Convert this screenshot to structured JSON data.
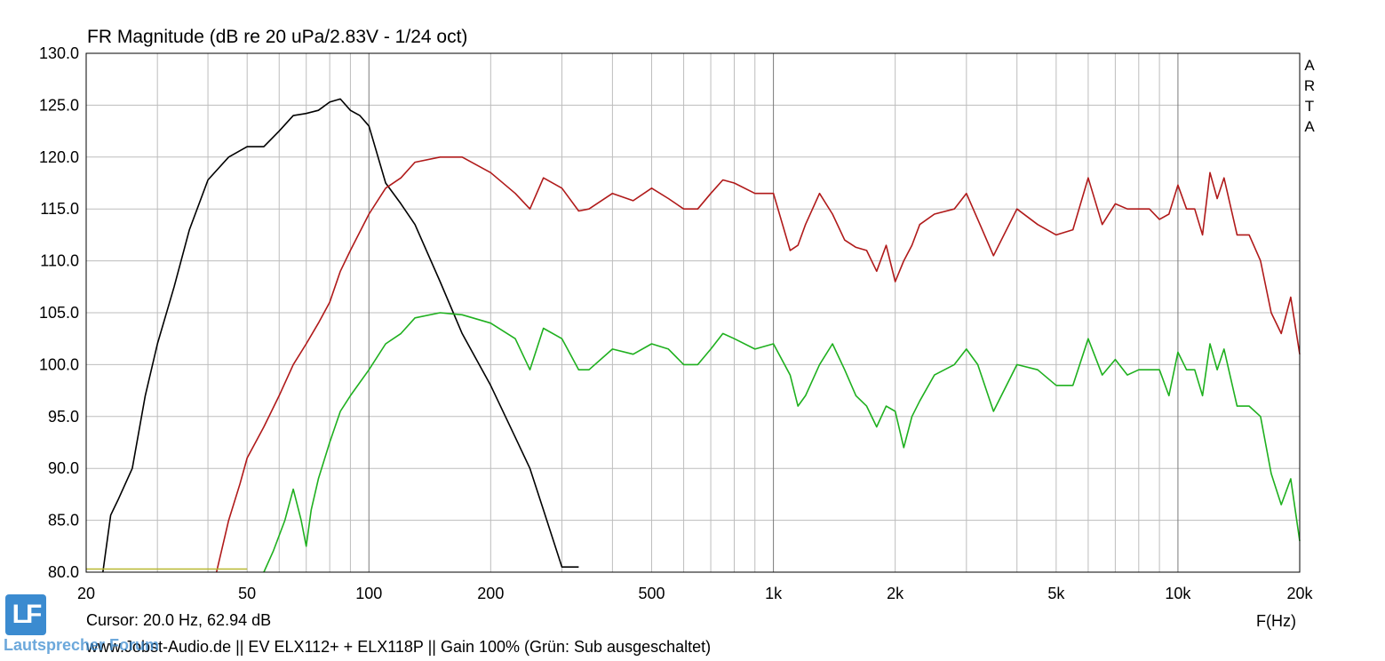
{
  "chart_data": {
    "type": "line",
    "title": "FR Magnitude (dB re 20 uPa/2.83V - 1/24 oct)",
    "xlabel": "F(Hz)",
    "ylabel": "",
    "xscale": "log",
    "xlim": [
      20,
      20000
    ],
    "ylim": [
      80,
      130
    ],
    "grid": true,
    "legend": "none",
    "y_ticks": [
      "130.0",
      "125.0",
      "120.0",
      "115.0",
      "110.0",
      "105.0",
      "100.0",
      "95.0",
      "90.0",
      "85.0",
      "80.0"
    ],
    "x_ticks": [
      {
        "value": 20,
        "label": "20"
      },
      {
        "value": 50,
        "label": "50"
      },
      {
        "value": 100,
        "label": "100"
      },
      {
        "value": 200,
        "label": "200"
      },
      {
        "value": 500,
        "label": "500"
      },
      {
        "value": 1000,
        "label": "1k"
      },
      {
        "value": 2000,
        "label": "2k"
      },
      {
        "value": 5000,
        "label": "5k"
      },
      {
        "value": 10000,
        "label": "10k"
      },
      {
        "value": 20000,
        "label": "20k"
      }
    ],
    "watermark": "A R T A",
    "series": [
      {
        "color": "#000000",
        "x": [
          22,
          23,
          24,
          26,
          28,
          30,
          33,
          36,
          40,
          45,
          50,
          55,
          60,
          65,
          70,
          75,
          80,
          85,
          90,
          95,
          100,
          110,
          120,
          130,
          150,
          170,
          200,
          230,
          250,
          270,
          300,
          330
        ],
        "y": [
          80,
          85.5,
          87,
          90,
          97,
          102,
          107.5,
          113,
          117.8,
          120,
          121,
          121,
          122.5,
          124,
          124.2,
          124.5,
          125.3,
          125.6,
          124.5,
          124,
          123,
          117.5,
          115.5,
          113.5,
          108,
          103,
          98,
          93,
          90,
          86,
          80.5,
          80.5
        ]
      },
      {
        "color": "#b01a1a",
        "x": [
          42,
          45,
          48,
          50,
          55,
          60,
          65,
          70,
          75,
          80,
          85,
          90,
          100,
          110,
          120,
          130,
          150,
          170,
          200,
          230,
          250,
          270,
          300,
          330,
          350,
          400,
          450,
          500,
          550,
          600,
          650,
          700,
          750,
          800,
          900,
          1000,
          1100,
          1150,
          1200,
          1300,
          1400,
          1500,
          1600,
          1700,
          1800,
          1900,
          2000,
          2100,
          2200,
          2300,
          2500,
          2800,
          3000,
          3200,
          3500,
          4000,
          4500,
          5000,
          5500,
          6000,
          6500,
          7000,
          7500,
          8000,
          8500,
          9000,
          9500,
          10000,
          10500,
          11000,
          11500,
          12000,
          12500,
          13000,
          14000,
          15000,
          16000,
          17000,
          18000,
          19000,
          20000
        ],
        "y": [
          80,
          85,
          88.5,
          91,
          94,
          97,
          100,
          102,
          104,
          106,
          109,
          111,
          114.5,
          117,
          118,
          119.5,
          120,
          120,
          118.5,
          116.5,
          115,
          118,
          117,
          114.8,
          115,
          116.5,
          115.8,
          117,
          116,
          115,
          115,
          116.5,
          117.8,
          117.5,
          116.5,
          116.5,
          111,
          111.5,
          113.5,
          116.5,
          114.5,
          112,
          111.3,
          111,
          109,
          111.5,
          108,
          110,
          111.5,
          113.5,
          114.5,
          115,
          116.5,
          114,
          110.5,
          115,
          113.5,
          112.5,
          113,
          118,
          113.5,
          115.5,
          115,
          115,
          115,
          114,
          114.5,
          117.3,
          115,
          115,
          112.5,
          118.5,
          116,
          118,
          112.5,
          112.5,
          110,
          105,
          103,
          106.5,
          101
        ]
      },
      {
        "color": "#1fb01f",
        "x": [
          55,
          58,
          62,
          65,
          68,
          70,
          72,
          75,
          80,
          85,
          90,
          100,
          110,
          120,
          130,
          150,
          170,
          200,
          230,
          250,
          270,
          300,
          330,
          350,
          400,
          450,
          500,
          550,
          600,
          650,
          700,
          750,
          800,
          900,
          1000,
          1100,
          1150,
          1200,
          1300,
          1400,
          1500,
          1600,
          1700,
          1800,
          1900,
          2000,
          2100,
          2200,
          2300,
          2500,
          2800,
          3000,
          3200,
          3500,
          4000,
          4500,
          5000,
          5500,
          6000,
          6500,
          7000,
          7500,
          8000,
          8500,
          9000,
          9500,
          10000,
          10500,
          11000,
          11500,
          12000,
          12500,
          13000,
          14000,
          15000,
          16000,
          17000,
          18000,
          19000,
          20000
        ],
        "y": [
          80,
          82,
          85,
          88,
          85,
          82.5,
          86,
          89,
          92.5,
          95.5,
          97,
          99.5,
          102,
          103,
          104.5,
          105,
          104.8,
          104,
          102.5,
          99.5,
          103.5,
          102.5,
          99.5,
          99.5,
          101.5,
          101,
          102,
          101.5,
          100,
          100,
          101.5,
          103,
          102.5,
          101.5,
          102,
          99,
          96,
          97,
          100,
          102,
          99.5,
          97,
          96,
          94,
          96,
          95.5,
          92,
          95,
          96.5,
          99,
          100,
          101.5,
          100,
          95.5,
          100,
          99.5,
          98,
          98,
          102.5,
          99,
          100.5,
          99,
          99.5,
          99.5,
          99.5,
          97,
          101.2,
          99.5,
          99.5,
          97,
          102,
          99.5,
          101.5,
          96,
          96,
          95,
          89.5,
          86.5,
          89,
          83
        ]
      },
      {
        "color": "#b8b830",
        "x": [
          20,
          50
        ],
        "y": [
          80.3,
          80.3
        ]
      }
    ]
  },
  "cursor_readout": "Cursor: 20.0 Hz, 62.94 dB",
  "footer_text": "www.Jobst-Audio.de  ||  EV ELX112+ + ELX118P  ||  Gain 100% (Grün: Sub ausgeschaltet)",
  "logo": {
    "mark": "LF",
    "text": "Lautsprecher Forum",
    "color": "#3b8bd0"
  }
}
